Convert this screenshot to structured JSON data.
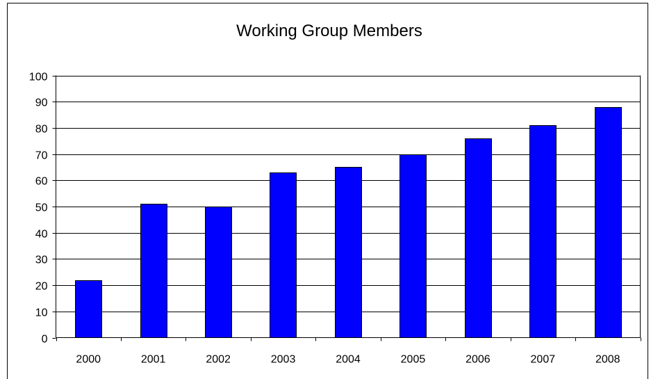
{
  "chart_data": {
    "type": "bar",
    "title": "Working Group Members",
    "xlabel": "",
    "ylabel": "",
    "categories": [
      "2000",
      "2001",
      "2002",
      "2003",
      "2004",
      "2005",
      "2006",
      "2007",
      "2008"
    ],
    "values": [
      22,
      51,
      50,
      63,
      65,
      70,
      76,
      81,
      88
    ],
    "ylim": [
      0,
      100
    ],
    "yticks": [
      0,
      10,
      20,
      30,
      40,
      50,
      60,
      70,
      80,
      90,
      100
    ],
    "ytick_labels": [
      "0",
      "10",
      "20",
      "30",
      "40",
      "50",
      "60",
      "70",
      "80",
      "90",
      "100"
    ],
    "grid": true,
    "legend": "none",
    "colors": {
      "bar_fill": "#0000FF",
      "bar_stroke": "#000000",
      "gridline": "#000000",
      "background": "#FFFFFF"
    }
  }
}
